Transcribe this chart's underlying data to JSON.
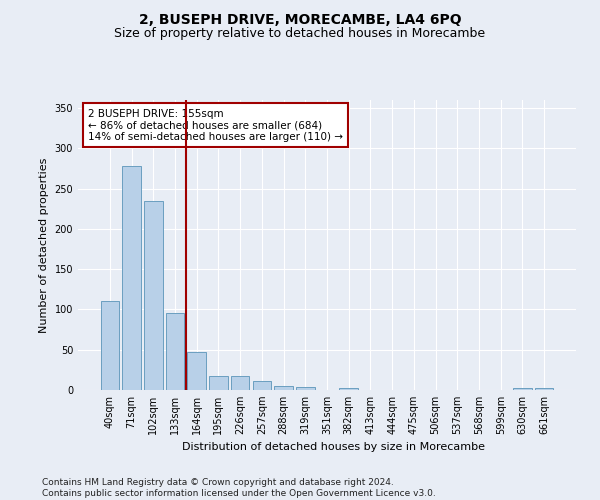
{
  "title": "2, BUSEPH DRIVE, MORECAMBE, LA4 6PQ",
  "subtitle": "Size of property relative to detached houses in Morecambe",
  "xlabel": "Distribution of detached houses by size in Morecambe",
  "ylabel": "Number of detached properties",
  "categories": [
    "40sqm",
    "71sqm",
    "102sqm",
    "133sqm",
    "164sqm",
    "195sqm",
    "226sqm",
    "257sqm",
    "288sqm",
    "319sqm",
    "351sqm",
    "382sqm",
    "413sqm",
    "444sqm",
    "475sqm",
    "506sqm",
    "537sqm",
    "568sqm",
    "599sqm",
    "630sqm",
    "661sqm"
  ],
  "values": [
    110,
    278,
    235,
    96,
    47,
    18,
    17,
    11,
    5,
    4,
    0,
    3,
    0,
    0,
    0,
    0,
    0,
    0,
    0,
    3,
    3
  ],
  "bar_color": "#b8d0e8",
  "bar_edge_color": "#6a9fc0",
  "vline_color": "#a00000",
  "annotation_text": "2 BUSEPH DRIVE: 155sqm\n← 86% of detached houses are smaller (684)\n14% of semi-detached houses are larger (110) →",
  "annotation_box_color": "#ffffff",
  "annotation_box_edge": "#a00000",
  "ylim": [
    0,
    360
  ],
  "yticks": [
    0,
    50,
    100,
    150,
    200,
    250,
    300,
    350
  ],
  "footer": "Contains HM Land Registry data © Crown copyright and database right 2024.\nContains public sector information licensed under the Open Government Licence v3.0.",
  "bg_color": "#e8edf5",
  "plot_bg_color": "#e8edf5",
  "title_fontsize": 10,
  "subtitle_fontsize": 9,
  "axis_label_fontsize": 8,
  "tick_fontsize": 7,
  "footer_fontsize": 6.5,
  "annot_fontsize": 7.5
}
